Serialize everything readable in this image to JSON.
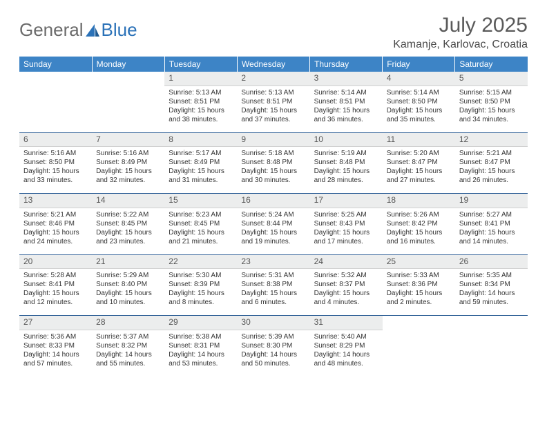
{
  "logo": {
    "text1": "General",
    "text2": "Blue"
  },
  "title": "July 2025",
  "location": "Kamanje, Karlovac, Croatia",
  "colors": {
    "header_bg": "#3d84c6",
    "header_text": "#ffffff",
    "daynum_bg": "#eceded",
    "row_separator": "#2e5f96",
    "logo_gray": "#6b6b6b",
    "logo_blue": "#2b72b8"
  },
  "weekdays": [
    "Sunday",
    "Monday",
    "Tuesday",
    "Wednesday",
    "Thursday",
    "Friday",
    "Saturday"
  ],
  "weeks": [
    [
      {
        "n": "",
        "sr": "",
        "ss": "",
        "dl": ""
      },
      {
        "n": "",
        "sr": "",
        "ss": "",
        "dl": ""
      },
      {
        "n": "1",
        "sr": "Sunrise: 5:13 AM",
        "ss": "Sunset: 8:51 PM",
        "dl": "Daylight: 15 hours and 38 minutes."
      },
      {
        "n": "2",
        "sr": "Sunrise: 5:13 AM",
        "ss": "Sunset: 8:51 PM",
        "dl": "Daylight: 15 hours and 37 minutes."
      },
      {
        "n": "3",
        "sr": "Sunrise: 5:14 AM",
        "ss": "Sunset: 8:51 PM",
        "dl": "Daylight: 15 hours and 36 minutes."
      },
      {
        "n": "4",
        "sr": "Sunrise: 5:14 AM",
        "ss": "Sunset: 8:50 PM",
        "dl": "Daylight: 15 hours and 35 minutes."
      },
      {
        "n": "5",
        "sr": "Sunrise: 5:15 AM",
        "ss": "Sunset: 8:50 PM",
        "dl": "Daylight: 15 hours and 34 minutes."
      }
    ],
    [
      {
        "n": "6",
        "sr": "Sunrise: 5:16 AM",
        "ss": "Sunset: 8:50 PM",
        "dl": "Daylight: 15 hours and 33 minutes."
      },
      {
        "n": "7",
        "sr": "Sunrise: 5:16 AM",
        "ss": "Sunset: 8:49 PM",
        "dl": "Daylight: 15 hours and 32 minutes."
      },
      {
        "n": "8",
        "sr": "Sunrise: 5:17 AM",
        "ss": "Sunset: 8:49 PM",
        "dl": "Daylight: 15 hours and 31 minutes."
      },
      {
        "n": "9",
        "sr": "Sunrise: 5:18 AM",
        "ss": "Sunset: 8:48 PM",
        "dl": "Daylight: 15 hours and 30 minutes."
      },
      {
        "n": "10",
        "sr": "Sunrise: 5:19 AM",
        "ss": "Sunset: 8:48 PM",
        "dl": "Daylight: 15 hours and 28 minutes."
      },
      {
        "n": "11",
        "sr": "Sunrise: 5:20 AM",
        "ss": "Sunset: 8:47 PM",
        "dl": "Daylight: 15 hours and 27 minutes."
      },
      {
        "n": "12",
        "sr": "Sunrise: 5:21 AM",
        "ss": "Sunset: 8:47 PM",
        "dl": "Daylight: 15 hours and 26 minutes."
      }
    ],
    [
      {
        "n": "13",
        "sr": "Sunrise: 5:21 AM",
        "ss": "Sunset: 8:46 PM",
        "dl": "Daylight: 15 hours and 24 minutes."
      },
      {
        "n": "14",
        "sr": "Sunrise: 5:22 AM",
        "ss": "Sunset: 8:45 PM",
        "dl": "Daylight: 15 hours and 23 minutes."
      },
      {
        "n": "15",
        "sr": "Sunrise: 5:23 AM",
        "ss": "Sunset: 8:45 PM",
        "dl": "Daylight: 15 hours and 21 minutes."
      },
      {
        "n": "16",
        "sr": "Sunrise: 5:24 AM",
        "ss": "Sunset: 8:44 PM",
        "dl": "Daylight: 15 hours and 19 minutes."
      },
      {
        "n": "17",
        "sr": "Sunrise: 5:25 AM",
        "ss": "Sunset: 8:43 PM",
        "dl": "Daylight: 15 hours and 17 minutes."
      },
      {
        "n": "18",
        "sr": "Sunrise: 5:26 AM",
        "ss": "Sunset: 8:42 PM",
        "dl": "Daylight: 15 hours and 16 minutes."
      },
      {
        "n": "19",
        "sr": "Sunrise: 5:27 AM",
        "ss": "Sunset: 8:41 PM",
        "dl": "Daylight: 15 hours and 14 minutes."
      }
    ],
    [
      {
        "n": "20",
        "sr": "Sunrise: 5:28 AM",
        "ss": "Sunset: 8:41 PM",
        "dl": "Daylight: 15 hours and 12 minutes."
      },
      {
        "n": "21",
        "sr": "Sunrise: 5:29 AM",
        "ss": "Sunset: 8:40 PM",
        "dl": "Daylight: 15 hours and 10 minutes."
      },
      {
        "n": "22",
        "sr": "Sunrise: 5:30 AM",
        "ss": "Sunset: 8:39 PM",
        "dl": "Daylight: 15 hours and 8 minutes."
      },
      {
        "n": "23",
        "sr": "Sunrise: 5:31 AM",
        "ss": "Sunset: 8:38 PM",
        "dl": "Daylight: 15 hours and 6 minutes."
      },
      {
        "n": "24",
        "sr": "Sunrise: 5:32 AM",
        "ss": "Sunset: 8:37 PM",
        "dl": "Daylight: 15 hours and 4 minutes."
      },
      {
        "n": "25",
        "sr": "Sunrise: 5:33 AM",
        "ss": "Sunset: 8:36 PM",
        "dl": "Daylight: 15 hours and 2 minutes."
      },
      {
        "n": "26",
        "sr": "Sunrise: 5:35 AM",
        "ss": "Sunset: 8:34 PM",
        "dl": "Daylight: 14 hours and 59 minutes."
      }
    ],
    [
      {
        "n": "27",
        "sr": "Sunrise: 5:36 AM",
        "ss": "Sunset: 8:33 PM",
        "dl": "Daylight: 14 hours and 57 minutes."
      },
      {
        "n": "28",
        "sr": "Sunrise: 5:37 AM",
        "ss": "Sunset: 8:32 PM",
        "dl": "Daylight: 14 hours and 55 minutes."
      },
      {
        "n": "29",
        "sr": "Sunrise: 5:38 AM",
        "ss": "Sunset: 8:31 PM",
        "dl": "Daylight: 14 hours and 53 minutes."
      },
      {
        "n": "30",
        "sr": "Sunrise: 5:39 AM",
        "ss": "Sunset: 8:30 PM",
        "dl": "Daylight: 14 hours and 50 minutes."
      },
      {
        "n": "31",
        "sr": "Sunrise: 5:40 AM",
        "ss": "Sunset: 8:29 PM",
        "dl": "Daylight: 14 hours and 48 minutes."
      },
      {
        "n": "",
        "sr": "",
        "ss": "",
        "dl": ""
      },
      {
        "n": "",
        "sr": "",
        "ss": "",
        "dl": ""
      }
    ]
  ]
}
